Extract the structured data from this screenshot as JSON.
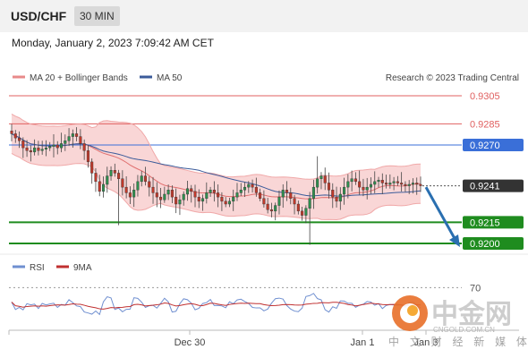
{
  "header": {
    "symbol": "USD/CHF",
    "timeframe": "30 MIN"
  },
  "datetime": "Monday, January 2, 2023 7:09:42 AM CET",
  "legend": {
    "ma20": "MA 20 + Bollinger Bands",
    "ma50": "MA 50",
    "research": "Research © 2023 Trading Central"
  },
  "rsi_legend": {
    "rsi": "RSI",
    "ma9": "9MA"
  },
  "watermark": {
    "brand": "中金网",
    "url": "CNGOLD.COM.CN",
    "tagline": "中 文 财 经 新 媒 体"
  },
  "colors": {
    "resistance": "#e06060",
    "pivot": "#3a6fd8",
    "support": "#1f8c1f",
    "candle_up": "#2f8f4f",
    "candle_down": "#c0392b",
    "bollinger_fill": "#f9d6d6",
    "ma50": "#3b5b9a",
    "ma20": "#e07070",
    "current": "#333333",
    "arrow": "#2a6fb0",
    "rsi": "#6f8fd0",
    "rsi_ma": "#c03030"
  },
  "chart_data": [
    {
      "type": "candlestick",
      "title": "USD/CHF",
      "timeframe": "30 MIN",
      "ylim": [
        0.9196,
        0.9318
      ],
      "x_ticks": [
        "Dec 30",
        "Jan 1",
        "Jan 3"
      ],
      "levels": [
        {
          "value": 0.9305,
          "label": "0.9305",
          "kind": "resistance"
        },
        {
          "value": 0.9285,
          "label": "0.9285",
          "kind": "resistance"
        },
        {
          "value": 0.927,
          "label": "0.9270",
          "kind": "pivot"
        },
        {
          "value": 0.9241,
          "label": "0.9241",
          "kind": "current"
        },
        {
          "value": 0.9215,
          "label": "0.9215",
          "kind": "support"
        },
        {
          "value": 0.92,
          "label": "0.9200",
          "kind": "support"
        }
      ],
      "projection": {
        "from": 0.924,
        "to": 0.92
      },
      "series": [
        {
          "name": "MA 20 + Bollinger Bands"
        },
        {
          "name": "MA 50"
        }
      ],
      "close": [
        0.9278,
        0.9275,
        0.9273,
        0.9268,
        0.9266,
        0.9265,
        0.9268,
        0.9266,
        0.9267,
        0.9268,
        0.9269,
        0.927,
        0.9268,
        0.9271,
        0.9273,
        0.9276,
        0.9278,
        0.9276,
        0.9271,
        0.9266,
        0.9258,
        0.925,
        0.9244,
        0.9237,
        0.9242,
        0.9248,
        0.9252,
        0.925,
        0.9246,
        0.924,
        0.9236,
        0.9233,
        0.9238,
        0.9244,
        0.9248,
        0.9244,
        0.924,
        0.9236,
        0.9233,
        0.9231,
        0.9235,
        0.9238,
        0.9233,
        0.9228,
        0.9231,
        0.9235,
        0.9239,
        0.9237,
        0.9233,
        0.923,
        0.9232,
        0.9236,
        0.9238,
        0.9236,
        0.9233,
        0.923,
        0.9228,
        0.923,
        0.9233,
        0.9236,
        0.9238,
        0.924,
        0.9242,
        0.924,
        0.9236,
        0.9232,
        0.9228,
        0.9224,
        0.9223,
        0.9227,
        0.9233,
        0.9238,
        0.9236,
        0.9232,
        0.9228,
        0.9223,
        0.922,
        0.9225,
        0.9232,
        0.924,
        0.9246,
        0.9248,
        0.9243,
        0.9238,
        0.9233,
        0.923,
        0.9235,
        0.924,
        0.9244,
        0.9246,
        0.9244,
        0.924,
        0.9238,
        0.924,
        0.9242,
        0.9244,
        0.9245,
        0.9243,
        0.9242,
        0.9243,
        0.9244,
        0.9243,
        0.9242,
        0.9241,
        0.9242,
        0.9243,
        0.9242,
        0.9241
      ]
    },
    {
      "type": "line",
      "title": "RSI",
      "series": [
        {
          "name": "RSI"
        },
        {
          "name": "9MA"
        }
      ],
      "y_ticks": [
        70
      ],
      "ylim": [
        20,
        80
      ]
    }
  ]
}
